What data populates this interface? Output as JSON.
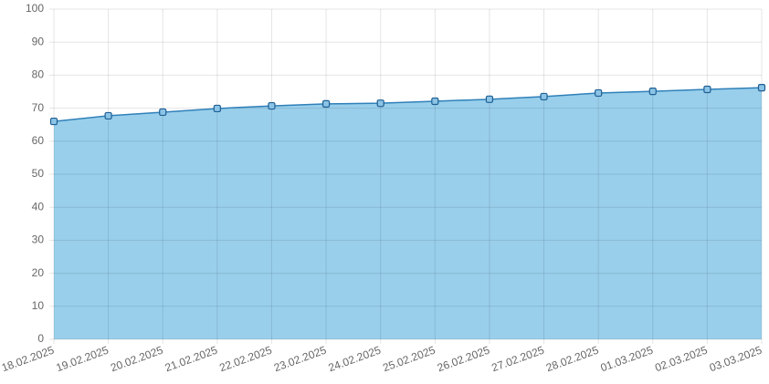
{
  "chart_data": {
    "type": "area",
    "categories": [
      "18.02.2025",
      "19.02.2025",
      "20.02.2025",
      "21.02.2025",
      "22.02.2025",
      "23.02.2025",
      "24.02.2025",
      "25.02.2025",
      "26.02.2025",
      "27.02.2025",
      "28.02.2025",
      "01.03.2025",
      "02.03.2025",
      "03.03.2025"
    ],
    "values": [
      66.0,
      67.7,
      68.8,
      69.9,
      70.7,
      71.3,
      71.5,
      72.1,
      72.7,
      73.5,
      74.6,
      75.1,
      75.7,
      76.2
    ],
    "color": "#2f80b9",
    "fill": "#99cfeb",
    "ylim": [
      0,
      100
    ],
    "yticks": [
      0,
      10,
      20,
      30,
      40,
      50,
      60,
      70,
      80,
      90,
      100
    ],
    "grid": true
  }
}
